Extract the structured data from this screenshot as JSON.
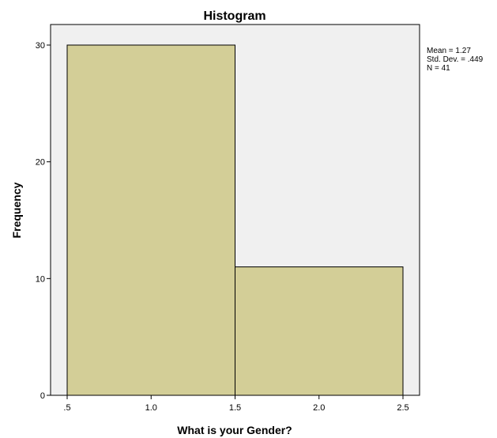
{
  "colors": {
    "plot_background": "#f0f0f0",
    "bar_fill": "#d3ce97",
    "bar_stroke": "#000000",
    "axis": "#000000"
  },
  "chart_data": {
    "type": "bar",
    "title": "Histogram",
    "xlabel": "What is your Gender?",
    "ylabel": "Frequency",
    "xlim": [
      0.5,
      2.5
    ],
    "ylim": [
      0,
      30
    ],
    "x_ticks": [
      0.5,
      1.0,
      1.5,
      2.0,
      2.5
    ],
    "x_tick_labels": [
      ".5",
      "1.0",
      "1.5",
      "2.0",
      "2.5"
    ],
    "y_ticks": [
      0,
      10,
      20,
      30
    ],
    "y_tick_labels": [
      "0",
      "10",
      "20",
      "30"
    ],
    "bins": [
      {
        "start": 0.5,
        "end": 1.5,
        "value": 30
      },
      {
        "start": 1.5,
        "end": 2.5,
        "value": 11
      }
    ],
    "grid": false,
    "stats": [
      "Mean = 1.27",
      "Std. Dev. = .449",
      "N = 41"
    ],
    "stats_placement": "top-right"
  }
}
